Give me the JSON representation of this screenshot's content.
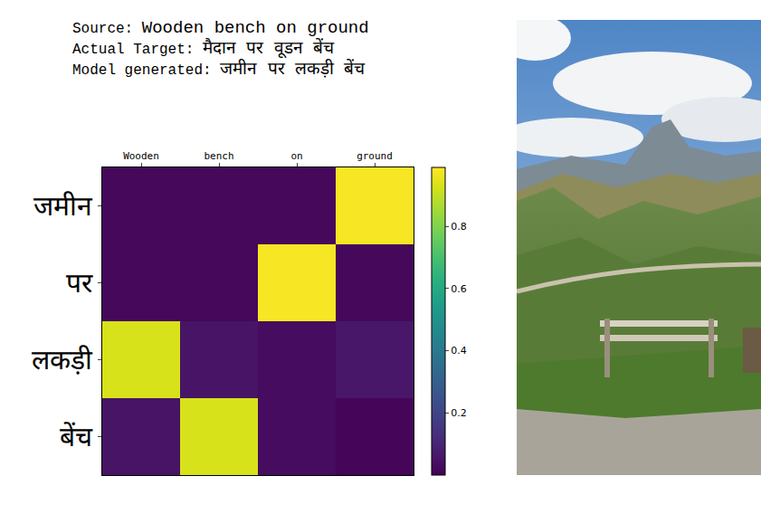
{
  "header": {
    "lines": [
      {
        "label": "Source:",
        "text": "Wooden bench on ground"
      },
      {
        "label": "Actual Target:",
        "text": "मैदान पर वूडन बेंच"
      },
      {
        "label": "Model generated:",
        "text": "जमीन पर लकड़ी बेंच"
      }
    ]
  },
  "chart_data": {
    "type": "heatmap",
    "x": [
      "Wooden",
      "bench",
      "on",
      "ground"
    ],
    "y": [
      "जमीन",
      "पर",
      "लकड़ी",
      "बेंच"
    ],
    "z": [
      [
        0.02,
        0.02,
        0.02,
        0.98
      ],
      [
        0.02,
        0.02,
        0.98,
        0.02
      ],
      [
        0.93,
        0.05,
        0.03,
        0.06
      ],
      [
        0.05,
        0.93,
        0.03,
        0.01
      ]
    ],
    "color": "viridis",
    "colorbar_range": [
      0,
      0.99
    ],
    "colorbar_ticks": [
      0.2,
      0.4,
      0.6,
      0.8
    ]
  }
}
